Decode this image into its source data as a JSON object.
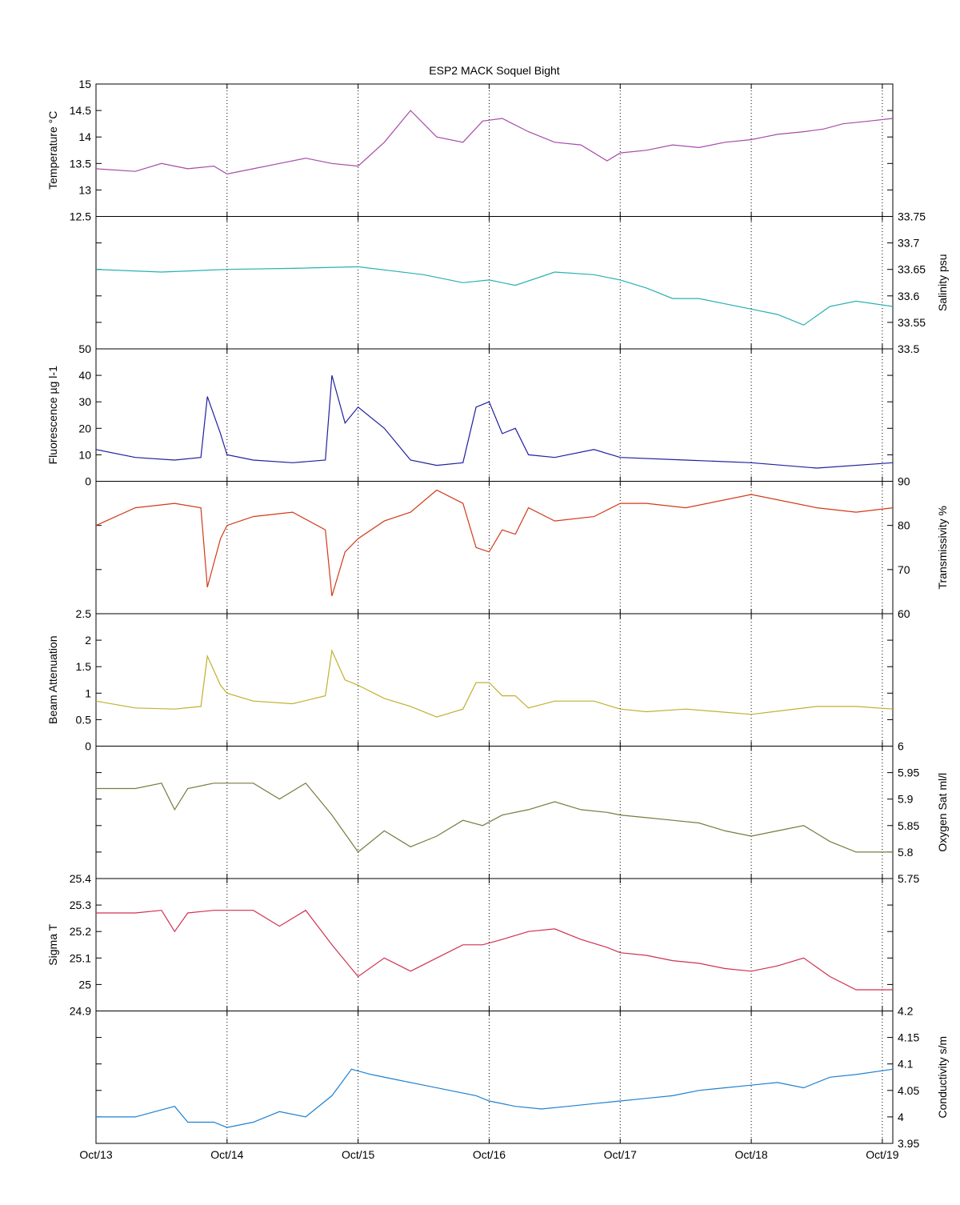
{
  "chart_data": {
    "type": "line",
    "title": "ESP2 MACK  Soquel Bight",
    "x_tick_labels": [
      "Oct/13",
      "Oct/14",
      "Oct/15",
      "Oct/16",
      "Oct/17",
      "Oct/18",
      "Oct/19"
    ],
    "xlim": [
      0,
      6.08
    ],
    "x_gridlines": "dotted at each day",
    "panels": [
      {
        "name": "temperature",
        "ylabel": "Temperature °C",
        "axis_side": "left",
        "ylim": [
          12.5,
          15
        ],
        "yticks": [
          "12.5",
          "13",
          "13.5",
          "14",
          "14.5",
          "15"
        ],
        "color": "#a64ca6",
        "x": [
          0,
          0.3,
          0.5,
          0.6,
          0.7,
          0.9,
          1.0,
          1.2,
          1.4,
          1.6,
          1.8,
          2.0,
          2.2,
          2.4,
          2.6,
          2.8,
          2.95,
          3.1,
          3.3,
          3.5,
          3.7,
          3.9,
          4.0,
          4.2,
          4.4,
          4.6,
          4.8,
          5.0,
          5.1,
          5.2,
          5.4,
          5.55,
          5.7,
          5.9,
          6.08
        ],
        "y": [
          13.4,
          13.35,
          13.5,
          13.45,
          13.4,
          13.45,
          13.3,
          13.4,
          13.5,
          13.6,
          13.5,
          13.45,
          13.9,
          14.5,
          14.0,
          13.9,
          14.3,
          14.35,
          14.1,
          13.9,
          13.85,
          13.55,
          13.7,
          13.75,
          13.85,
          13.8,
          13.9,
          13.95,
          14.0,
          14.05,
          14.1,
          14.15,
          14.25,
          14.3,
          14.35
        ]
      },
      {
        "name": "salinity",
        "ylabel": "Salinity psu",
        "axis_side": "right",
        "ylim": [
          33.5,
          33.75
        ],
        "yticks": [
          "33.5",
          "33.55",
          "33.6",
          "33.65",
          "33.7",
          "33.75"
        ],
        "color": "#2ab0b0",
        "x": [
          0,
          0.5,
          1.0,
          1.5,
          2.0,
          2.5,
          2.8,
          3.0,
          3.2,
          3.5,
          3.8,
          4.0,
          4.2,
          4.4,
          4.6,
          4.8,
          5.0,
          5.2,
          5.4,
          5.6,
          5.8,
          6.08
        ],
        "y": [
          33.65,
          33.645,
          33.65,
          33.652,
          33.655,
          33.64,
          33.625,
          33.63,
          33.62,
          33.645,
          33.64,
          33.63,
          33.615,
          33.595,
          33.595,
          33.585,
          33.575,
          33.565,
          33.545,
          33.58,
          33.59,
          33.58
        ]
      },
      {
        "name": "fluorescence",
        "ylabel": "Fluorescence µg l-1",
        "axis_side": "left",
        "ylim": [
          0,
          50
        ],
        "yticks": [
          "0",
          "10",
          "20",
          "30",
          "40",
          "50"
        ],
        "color": "#2020a0",
        "x": [
          0,
          0.3,
          0.6,
          0.8,
          0.85,
          0.95,
          1.0,
          1.2,
          1.5,
          1.75,
          1.8,
          1.9,
          2.0,
          2.2,
          2.4,
          2.6,
          2.8,
          2.9,
          3.0,
          3.1,
          3.2,
          3.3,
          3.5,
          3.8,
          4.0,
          4.5,
          5.0,
          5.5,
          6.08
        ],
        "y": [
          12,
          9,
          8,
          9,
          32,
          18,
          10,
          8,
          7,
          8,
          40,
          22,
          28,
          20,
          8,
          6,
          7,
          28,
          30,
          18,
          20,
          10,
          9,
          12,
          9,
          8,
          7,
          5,
          7
        ]
      },
      {
        "name": "transmissivity",
        "ylabel": "Transmissivity %",
        "axis_side": "right",
        "ylim": [
          60,
          90
        ],
        "yticks": [
          "60",
          "70",
          "80",
          "90"
        ],
        "color": "#d03a1a",
        "x": [
          0,
          0.3,
          0.6,
          0.8,
          0.85,
          0.95,
          1.0,
          1.2,
          1.5,
          1.75,
          1.8,
          1.9,
          2.0,
          2.2,
          2.4,
          2.6,
          2.8,
          2.9,
          3.0,
          3.1,
          3.2,
          3.3,
          3.5,
          3.8,
          4.0,
          4.2,
          4.5,
          5.0,
          5.5,
          5.8,
          6.08
        ],
        "y": [
          80,
          84,
          85,
          84,
          66,
          77,
          80,
          82,
          83,
          79,
          64,
          74,
          77,
          81,
          83,
          88,
          85,
          75,
          74,
          79,
          78,
          84,
          81,
          82,
          85,
          85,
          84,
          87,
          84,
          83,
          84
        ]
      },
      {
        "name": "beam_attenuation",
        "ylabel": "Beam Attenuation",
        "axis_side": "left",
        "ylim": [
          0,
          2.5
        ],
        "yticks": [
          "0",
          "0.5",
          "1",
          "1.5",
          "2",
          "2.5"
        ],
        "color": "#c0b030",
        "x": [
          0,
          0.3,
          0.6,
          0.8,
          0.85,
          0.95,
          1.0,
          1.2,
          1.5,
          1.75,
          1.8,
          1.9,
          2.0,
          2.2,
          2.4,
          2.6,
          2.8,
          2.9,
          3.0,
          3.1,
          3.2,
          3.3,
          3.5,
          3.8,
          4.0,
          4.2,
          4.5,
          5.0,
          5.5,
          5.8,
          6.08
        ],
        "y": [
          0.85,
          0.72,
          0.7,
          0.75,
          1.7,
          1.15,
          1.0,
          0.85,
          0.8,
          0.95,
          1.8,
          1.25,
          1.15,
          0.9,
          0.75,
          0.55,
          0.7,
          1.2,
          1.2,
          0.95,
          0.95,
          0.72,
          0.85,
          0.85,
          0.7,
          0.65,
          0.7,
          0.6,
          0.75,
          0.75,
          0.7
        ]
      },
      {
        "name": "oxygen_sat",
        "ylabel": "Oxygen Sat ml/l",
        "axis_side": "right",
        "ylim": [
          5.75,
          6
        ],
        "yticks": [
          "5.75",
          "5.8",
          "5.85",
          "5.9",
          "5.95",
          "6"
        ],
        "color": "#7a7a40",
        "x": [
          0,
          0.3,
          0.5,
          0.6,
          0.7,
          0.9,
          1.0,
          1.2,
          1.4,
          1.6,
          1.8,
          2.0,
          2.2,
          2.4,
          2.6,
          2.8,
          2.95,
          3.1,
          3.3,
          3.5,
          3.7,
          3.9,
          4.0,
          4.2,
          4.4,
          4.6,
          4.8,
          5.0,
          5.2,
          5.4,
          5.6,
          5.8,
          6.08
        ],
        "y": [
          5.92,
          5.92,
          5.93,
          5.88,
          5.92,
          5.93,
          5.93,
          5.93,
          5.9,
          5.93,
          5.87,
          5.8,
          5.84,
          5.81,
          5.83,
          5.86,
          5.85,
          5.87,
          5.88,
          5.895,
          5.88,
          5.875,
          5.87,
          5.865,
          5.86,
          5.855,
          5.84,
          5.83,
          5.84,
          5.85,
          5.82,
          5.8,
          5.8
        ]
      },
      {
        "name": "sigma_t",
        "ylabel": "Sigma T",
        "axis_side": "left",
        "ylim": [
          24.9,
          25.4
        ],
        "yticks": [
          "24.9",
          "25",
          "25.1",
          "25.2",
          "25.3",
          "25.4"
        ],
        "color": "#d03050",
        "x": [
          0,
          0.3,
          0.5,
          0.6,
          0.7,
          0.9,
          1.0,
          1.2,
          1.4,
          1.6,
          1.8,
          2.0,
          2.2,
          2.4,
          2.6,
          2.8,
          2.95,
          3.1,
          3.3,
          3.5,
          3.7,
          3.9,
          4.0,
          4.2,
          4.4,
          4.6,
          4.8,
          5.0,
          5.2,
          5.4,
          5.6,
          5.8,
          6.08
        ],
        "y": [
          25.27,
          25.27,
          25.28,
          25.2,
          25.27,
          25.28,
          25.28,
          25.28,
          25.22,
          25.28,
          25.15,
          25.03,
          25.1,
          25.05,
          25.1,
          25.15,
          25.15,
          25.17,
          25.2,
          25.21,
          25.17,
          25.14,
          25.12,
          25.11,
          25.09,
          25.08,
          25.06,
          25.05,
          25.07,
          25.1,
          25.03,
          24.98,
          24.98
        ]
      },
      {
        "name": "conductivity",
        "ylabel": "Conductivity s/m",
        "axis_side": "right",
        "ylim": [
          3.95,
          4.2
        ],
        "yticks": [
          "3.95",
          "4",
          "4.05",
          "4.1",
          "4.15",
          "4.2"
        ],
        "color": "#2080d0",
        "x": [
          0,
          0.3,
          0.6,
          0.7,
          0.9,
          1.0,
          1.2,
          1.4,
          1.6,
          1.8,
          1.95,
          2.1,
          2.3,
          2.5,
          2.7,
          2.9,
          3.0,
          3.2,
          3.4,
          3.6,
          3.8,
          4.0,
          4.2,
          4.4,
          4.6,
          4.8,
          5.0,
          5.2,
          5.4,
          5.6,
          5.8,
          6.08
        ],
        "y": [
          4.0,
          4.0,
          4.02,
          3.99,
          3.99,
          3.98,
          3.99,
          4.01,
          4.0,
          4.04,
          4.09,
          4.08,
          4.07,
          4.06,
          4.05,
          4.04,
          4.03,
          4.02,
          4.015,
          4.02,
          4.025,
          4.03,
          4.035,
          4.04,
          4.05,
          4.055,
          4.06,
          4.065,
          4.055,
          4.075,
          4.08,
          4.09
        ]
      }
    ]
  }
}
